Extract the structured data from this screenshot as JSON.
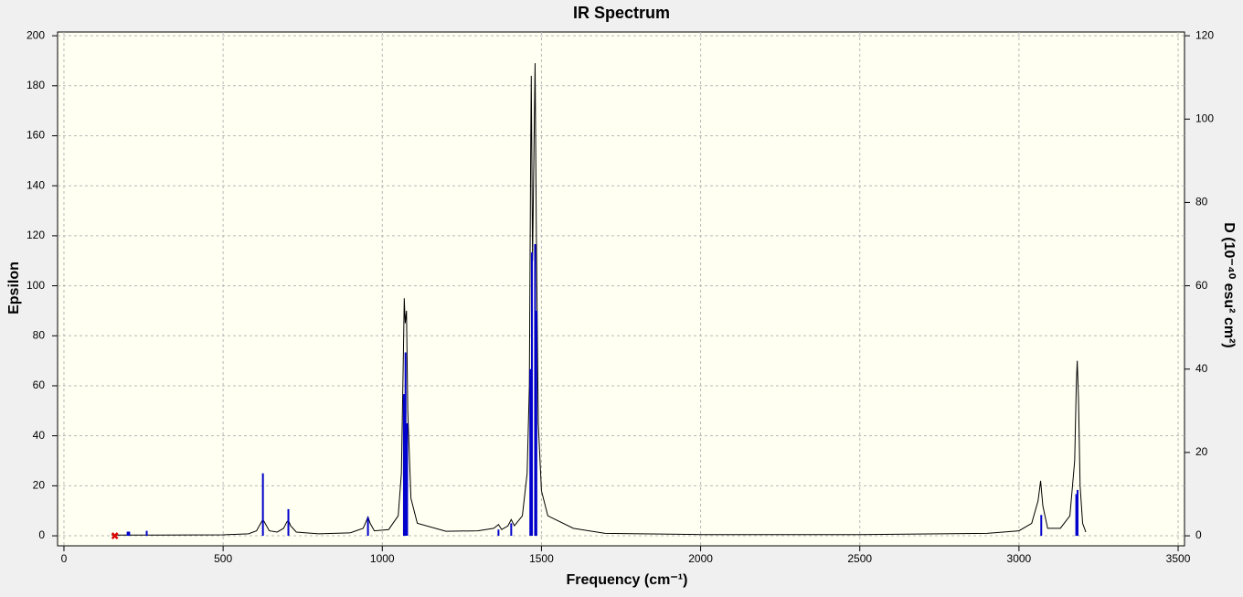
{
  "chart_data": {
    "type": "line",
    "title": "IR Spectrum",
    "x_label": "Frequency (cm⁻¹)",
    "y_label": "Epsilon",
    "y2_label": "D (10⁻⁴⁰ esu² cm²)",
    "xlim": [
      -20,
      3520
    ],
    "ylim": [
      -4,
      201.5
    ],
    "y2lim": [
      -2.4,
      120.9
    ],
    "xticks": [
      0,
      500,
      1000,
      1500,
      2000,
      2500,
      3000,
      3500
    ],
    "yticks": [
      0,
      20,
      40,
      60,
      80,
      100,
      120,
      140,
      160,
      180,
      200
    ],
    "y2ticks": [
      0,
      20,
      40,
      60,
      80,
      100,
      120
    ],
    "grid": true,
    "series": [
      {
        "type": "line",
        "color": "#000000",
        "x": [
          150,
          300,
          500,
          580,
          605,
          618,
          625,
          632,
          645,
          670,
          690,
          700,
          705,
          712,
          730,
          800,
          900,
          940,
          950,
          955,
          962,
          975,
          1020,
          1050,
          1060,
          1066,
          1069,
          1072,
          1076,
          1080,
          1090,
          1110,
          1200,
          1300,
          1350,
          1365,
          1375,
          1395,
          1405,
          1415,
          1440,
          1455,
          1462,
          1466,
          1468,
          1472,
          1476,
          1480,
          1484,
          1490,
          1500,
          1520,
          1600,
          1700,
          2000,
          2500,
          2900,
          3000,
          3040,
          3060,
          3068,
          3075,
          3090,
          3130,
          3160,
          3175,
          3180,
          3183,
          3187,
          3192,
          3200,
          3210
        ],
        "values": [
          0.3,
          0.3,
          0.4,
          0.8,
          2,
          5,
          6.5,
          5,
          2,
          1.5,
          3,
          5.5,
          6.2,
          4,
          1.5,
          0.8,
          1.2,
          3,
          6,
          7.5,
          5,
          2,
          2.5,
          8,
          25,
          70,
          95,
          85,
          90,
          50,
          15,
          5,
          1.8,
          2,
          3,
          4.5,
          2.5,
          4,
          6.5,
          4,
          8,
          25,
          60,
          150,
          184,
          110,
          150,
          189,
          120,
          45,
          18,
          8,
          3,
          1,
          0.5,
          0.5,
          1,
          2,
          5,
          14,
          22,
          12,
          3,
          3,
          8,
          30,
          60,
          70,
          55,
          20,
          5,
          1.5
        ]
      },
      {
        "type": "stick",
        "axis": "y2",
        "color": "#0000cc",
        "x": [
          200,
          205,
          260,
          625,
          705,
          955,
          1068,
          1073,
          1078,
          1365,
          1405,
          1465,
          1470,
          1480,
          1484,
          3070,
          3180,
          3184
        ],
        "values": [
          1,
          1,
          1.2,
          15,
          6.4,
          4.5,
          34,
          44,
          27,
          1.5,
          3,
          40,
          68,
          70,
          54,
          5,
          10,
          11
        ]
      }
    ],
    "marker": {
      "x": 160,
      "y": 0,
      "color": "#dd0000"
    }
  }
}
